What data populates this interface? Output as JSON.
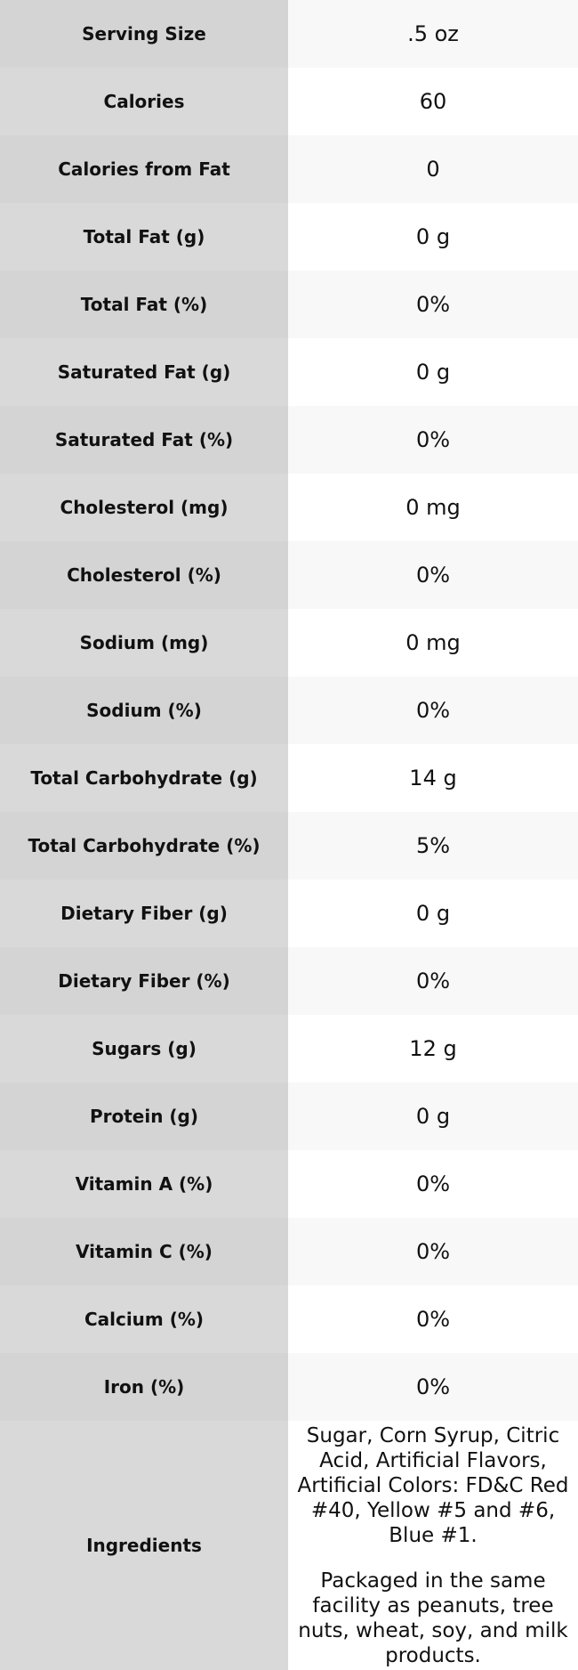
{
  "table": {
    "rows": [
      [
        "Serving Size",
        ".5 oz"
      ],
      [
        "Calories",
        "60"
      ],
      [
        "Calories from Fat",
        "0"
      ],
      [
        "Total Fat (g)",
        "0 g"
      ],
      [
        "Total Fat (%)",
        "0%"
      ],
      [
        "Saturated Fat (g)",
        "0 g"
      ],
      [
        "Saturated Fat (%)",
        "0%"
      ],
      [
        "Cholesterol (mg)",
        "0 mg"
      ],
      [
        "Cholesterol (%)",
        "0%"
      ],
      [
        "Sodium (mg)",
        "0 mg"
      ],
      [
        "Sodium (%)",
        "0%"
      ],
      [
        "Total Carbohydrate (g)",
        "14 g"
      ],
      [
        "Total Carbohydrate (%)",
        "5%"
      ],
      [
        "Dietary Fiber (g)",
        "0 g"
      ],
      [
        "Dietary Fiber (%)",
        "0%"
      ],
      [
        "Sugars (g)",
        "12 g"
      ],
      [
        "Protein (g)",
        "0 g"
      ],
      [
        "Vitamin A (%)",
        "0%"
      ],
      [
        "Vitamin C (%)",
        "0%"
      ],
      [
        "Calcium (%)",
        "0%"
      ],
      [
        "Iron (%)",
        "0%"
      ]
    ],
    "ingredients": {
      "label": "Ingredients",
      "paragraphs": [
        "Sugar, Corn Syrup, Citric Acid, Artificial Flavors, Artificial Colors: FD&C Red #40, Yellow #5 and #6, Blue #1.",
        "Packaged in the same facility as peanuts, tree nuts, wheat, soy, and milk products."
      ]
    }
  }
}
